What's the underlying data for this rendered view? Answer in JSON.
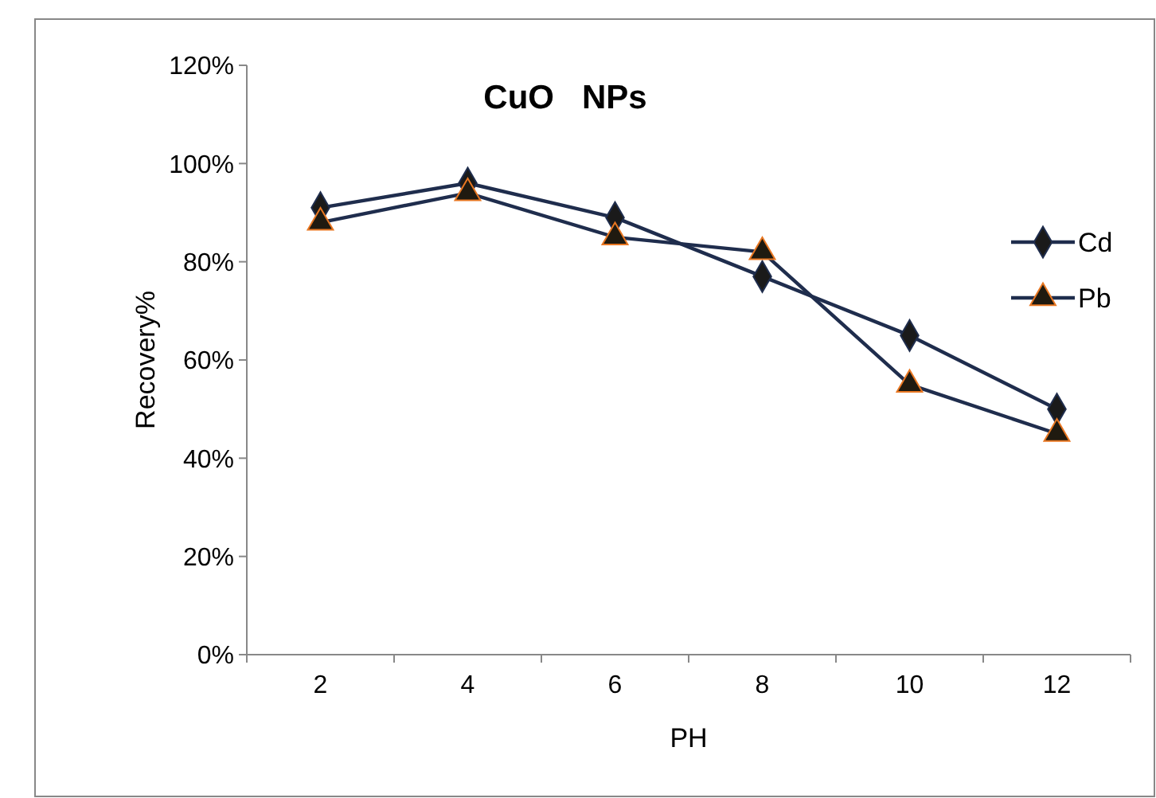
{
  "chart_data": {
    "type": "line",
    "title": "CuO   NPs",
    "xlabel": "PH",
    "ylabel": "Recovery%",
    "categories": [
      "2",
      "4",
      "6",
      "8",
      "10",
      "12"
    ],
    "ylim": [
      0,
      1.2
    ],
    "yticks": [
      {
        "value": 0,
        "label": "0%"
      },
      {
        "value": 0.2,
        "label": "20%"
      },
      {
        "value": 0.4,
        "label": "40%"
      },
      {
        "value": 0.6,
        "label": "60%"
      },
      {
        "value": 0.8,
        "label": "80%"
      },
      {
        "value": 1,
        "label": "100%"
      },
      {
        "value": 1.2,
        "label": "120%"
      }
    ],
    "series": [
      {
        "name": "Cd",
        "color": "#1f2d4d",
        "marker": "diamond",
        "values": [
          0.91,
          0.96,
          0.89,
          0.77,
          0.65,
          0.5
        ]
      },
      {
        "name": "Pb",
        "color": "#1f2d4d",
        "marker": "triangle",
        "values": [
          0.88,
          0.94,
          0.85,
          0.82,
          0.55,
          0.45
        ]
      }
    ],
    "legend": "right",
    "grid": false
  }
}
